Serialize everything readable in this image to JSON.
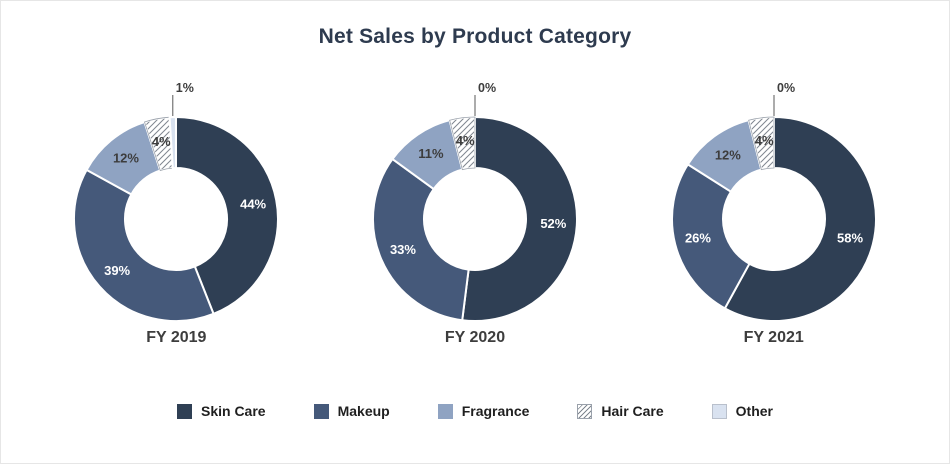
{
  "chart_data": {
    "type": "pie",
    "subtype": "donut",
    "title": "Net Sales by Product Category",
    "unit": "%",
    "legend_position": "bottom",
    "categories": [
      "Skin Care",
      "Makeup",
      "Fragrance",
      "Hair Care",
      "Other"
    ],
    "colors": [
      "#2f3f54",
      "#45597a",
      "#8fa3c2",
      "hatch",
      "#d9e2f0"
    ],
    "hatch_color": "#7f868f",
    "charts": [
      {
        "label": "FY 2019",
        "values": [
          44,
          39,
          12,
          4,
          1
        ]
      },
      {
        "label": "FY 2020",
        "values": [
          52,
          33,
          11,
          4,
          0
        ]
      },
      {
        "label": "FY 2021",
        "values": [
          58,
          26,
          12,
          4,
          0
        ]
      }
    ]
  }
}
